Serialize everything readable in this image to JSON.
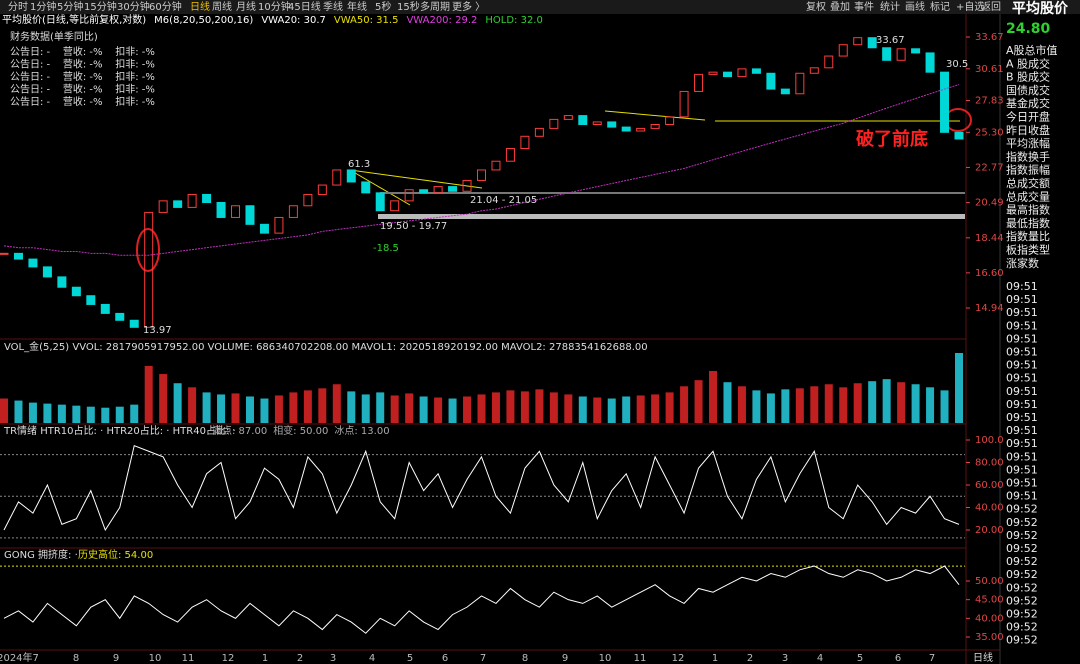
{
  "toolbar": {
    "left": [
      "分时",
      "1分钟",
      "5分钟",
      "15分钟",
      "30分钟",
      "60分钟",
      "日线",
      "周线",
      "月线",
      "10分钟",
      "45日线",
      "季线",
      "年线",
      "5秒",
      "15秒",
      "多周期",
      "更多 〉"
    ],
    "right": [
      "复权",
      "叠加",
      "事件",
      "统计",
      "画线",
      "标记",
      "+自选",
      "返回"
    ]
  },
  "legend": [
    {
      "text": "平均股价(日线,等比前复权,对数)",
      "color": "#ffffff"
    },
    {
      "text": "M6(8,20,50,200,16)",
      "color": "#ffffff"
    },
    {
      "text": "VWA20: 30.7",
      "color": "#ffffff"
    },
    {
      "text": "VWA50: 31.5",
      "color": "#e8e000"
    },
    {
      "text": "VWA200: 29.2",
      "color": "#e040e0"
    },
    {
      "text": "HOLD: 32.0",
      "color": "#30d030"
    }
  ],
  "finance": {
    "title": "财务数据(单季同比)",
    "rows": [
      "公告日: -    营收: -%    扣非: -%",
      "公告日: -    营收: -%    扣非: -%",
      "公告日: -    营收: -%    扣非: -%",
      "公告日: -    营收: -%    扣非: -%",
      "公告日: -    营收: -%    扣非: -%"
    ]
  },
  "price": {
    "yticks": [
      {
        "value": 33.67,
        "label": "33.67"
      },
      {
        "value": 30.61,
        "label": "30.61"
      },
      {
        "value": 27.83,
        "label": "27.83"
      },
      {
        "value": 25.3,
        "label": "25.30"
      },
      {
        "value": 22.77,
        "label": "22.77"
      },
      {
        "value": 20.49,
        "label": "20.49"
      },
      {
        "value": 18.44,
        "label": "18.44"
      },
      {
        "value": 16.6,
        "label": "16.60"
      },
      {
        "value": 14.94,
        "label": "14.94"
      }
    ],
    "log_scale": true,
    "close": [
      17.6,
      17.3,
      16.9,
      16.4,
      15.9,
      15.5,
      15.1,
      14.7,
      14.4,
      14.1,
      19.9,
      20.6,
      20.2,
      21.0,
      20.5,
      19.6,
      20.3,
      19.2,
      18.7,
      19.6,
      20.3,
      21.0,
      21.6,
      22.6,
      21.8,
      21.1,
      20.0,
      20.6,
      21.3,
      21.1,
      21.5,
      21.2,
      21.9,
      22.6,
      23.2,
      24.1,
      25.0,
      25.6,
      26.3,
      26.6,
      25.9,
      26.1,
      25.7,
      25.4,
      25.6,
      25.9,
      26.5,
      28.6,
      30.1,
      30.3,
      29.9,
      30.6,
      30.2,
      28.8,
      28.4,
      30.2,
      30.7,
      31.8,
      32.9,
      33.6,
      32.6,
      31.4,
      32.5,
      32.1,
      30.3,
      25.3,
      24.8
    ],
    "vwa200": [
      18.0,
      17.9,
      17.9,
      17.8,
      17.7,
      17.7,
      17.6,
      17.6,
      17.5,
      17.5,
      17.5,
      17.6,
      17.7,
      17.8,
      17.9,
      18.0,
      18.1,
      18.2,
      18.3,
      18.4,
      18.5,
      18.6,
      18.8,
      18.9,
      19.0,
      19.1,
      19.2,
      19.3,
      19.4,
      19.5,
      19.6,
      19.7,
      19.8,
      20.0,
      20.1,
      20.3,
      20.5,
      20.7,
      20.9,
      21.1,
      21.3,
      21.5,
      21.7,
      21.9,
      22.1,
      22.3,
      22.5,
      22.7,
      23.0,
      23.3,
      23.6,
      23.9,
      24.2,
      24.5,
      24.8,
      25.1,
      25.4,
      25.7,
      26.0,
      26.4,
      26.8,
      27.2,
      27.6,
      28.0,
      28.4,
      28.8,
      29.2
    ],
    "annotations": [
      "33.67",
      "30.5",
      "61.3",
      "21.04 - 21.05",
      "19.50 - 19.77",
      "-18.5",
      "13.97",
      "破了前底"
    ]
  },
  "volume": {
    "title": "VOL_金(5,25)  VVOL: 2817905917952.00  VOLUME: 686340702208.00  MAVOL1: 2020518920192.00  MAVOL2: 2788354162688.00",
    "values": [
      240000000000.0,
      220000000000.0,
      200000000000.0,
      190000000000.0,
      180000000000.0,
      170000000000.0,
      160000000000.0,
      150000000000.0,
      160000000000.0,
      180000000000.0,
      560000000000.0,
      480000000000.0,
      390000000000.0,
      350000000000.0,
      300000000000.0,
      280000000000.0,
      290000000000.0,
      260000000000.0,
      240000000000.0,
      270000000000.0,
      300000000000.0,
      320000000000.0,
      340000000000.0,
      380000000000.0,
      310000000000.0,
      280000000000.0,
      300000000000.0,
      270000000000.0,
      290000000000.0,
      260000000000.0,
      250000000000.0,
      240000000000.0,
      260000000000.0,
      280000000000.0,
      300000000000.0,
      320000000000.0,
      310000000000.0,
      330000000000.0,
      300000000000.0,
      280000000000.0,
      260000000000.0,
      250000000000.0,
      240000000000.0,
      260000000000.0,
      270000000000.0,
      280000000000.0,
      300000000000.0,
      360000000000.0,
      420000000000.0,
      510000000000.0,
      400000000000.0,
      360000000000.0,
      320000000000.0,
      290000000000.0,
      330000000000.0,
      340000000000.0,
      360000000000.0,
      380000000000.0,
      350000000000.0,
      390000000000.0,
      410000000000.0,
      430000000000.0,
      400000000000.0,
      380000000000.0,
      350000000000.0,
      320000000000.0,
      686340702208
    ]
  },
  "tr": {
    "title": "TR情绪  HTR10占比: ·  HTR20占比: ·  HTR40占比: ·",
    "levels": [
      {
        "value": 87,
        "label": "满点: 87.00"
      },
      {
        "value": 50,
        "label": "相变: 50.00"
      },
      {
        "value": 13,
        "label": "冰点: 13.00"
      }
    ],
    "yticks": [
      {
        "value": 100,
        "label": "100.0"
      },
      {
        "value": 80,
        "label": "80.00"
      },
      {
        "value": 60,
        "label": "60.00"
      },
      {
        "value": 40,
        "label": "40.00"
      },
      {
        "value": 20,
        "label": "20.00"
      }
    ],
    "values": [
      20,
      45,
      35,
      60,
      25,
      30,
      55,
      20,
      40,
      95,
      90,
      85,
      60,
      40,
      70,
      80,
      30,
      45,
      75,
      65,
      40,
      85,
      70,
      35,
      60,
      90,
      45,
      30,
      80,
      55,
      70,
      40,
      65,
      85,
      50,
      35,
      75,
      90,
      60,
      45,
      80,
      30,
      55,
      70,
      40,
      85,
      60,
      35,
      75,
      90,
      50,
      30,
      65,
      85,
      45,
      70,
      90,
      40,
      30,
      60,
      45,
      25,
      40,
      35,
      50,
      30,
      25
    ]
  },
  "gong": {
    "title": "GONG  拥挤度: ·",
    "high": {
      "value": 54,
      "label": "历史高位: 54.00"
    },
    "yticks": [
      {
        "value": 50,
        "label": "50.00"
      },
      {
        "value": 45,
        "label": "45.00"
      },
      {
        "value": 40,
        "label": "40.00"
      },
      {
        "value": 35,
        "label": "35.00"
      }
    ],
    "values": [
      40,
      42,
      39,
      44,
      41,
      38,
      43,
      45,
      40,
      46,
      44,
      41,
      39,
      43,
      45,
      42,
      40,
      44,
      41,
      38,
      42,
      40,
      37,
      41,
      39,
      36,
      40,
      38,
      42,
      39,
      37,
      41,
      43,
      46,
      44,
      48,
      45,
      43,
      47,
      45,
      44,
      46,
      43,
      45,
      47,
      49,
      46,
      44,
      48,
      47,
      49,
      51,
      50,
      52,
      51,
      53,
      54,
      52,
      51,
      53,
      52,
      50,
      51,
      53,
      52,
      54,
      49
    ]
  },
  "x_axis": {
    "labels": [
      "2024年7",
      "8",
      "9",
      "10",
      "11",
      "12",
      "1",
      "2",
      "3",
      "4",
      "5",
      "6",
      "7",
      "8",
      "9",
      "10",
      "11",
      "12",
      "1",
      "2",
      "3",
      "4",
      "5",
      "6",
      "7"
    ],
    "period": "日线"
  },
  "sidebar": {
    "title": "平均股价",
    "value": "24.80",
    "items": [
      "A股总市值",
      "A 股成交",
      "B 股成交",
      "国债成交",
      "基金成交",
      "今日开盘",
      "昨日收盘",
      "平均涨幅",
      "指数换手",
      "指数振幅",
      "总成交额",
      "总成交量",
      "最高指数",
      "最低指数",
      "指数量比",
      "板指类型",
      "涨家数"
    ],
    "times": [
      "09:51",
      "09:51",
      "09:51",
      "09:51",
      "09:51",
      "09:51",
      "09:51",
      "09:51",
      "09:51",
      "09:51",
      "09:51",
      "09:51",
      "09:51",
      "09:51",
      "09:51",
      "09:51",
      "09:51",
      "09:52",
      "09:52",
      "09:52",
      "09:52",
      "09:52",
      "09:52",
      "09:52",
      "09:52",
      "09:52",
      "09:52",
      "09:52"
    ]
  }
}
